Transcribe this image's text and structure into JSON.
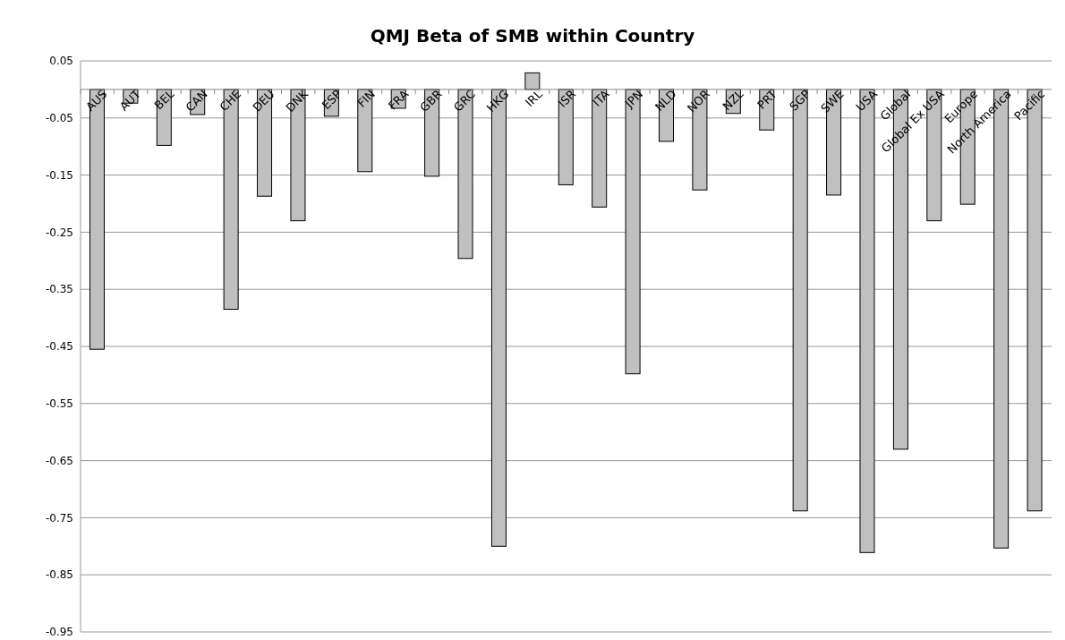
{
  "chart_data": {
    "type": "bar",
    "title": "QMJ Beta of SMB within Country",
    "categories": [
      "AUS",
      "AUT",
      "BEL",
      "CAN",
      "CHE",
      "DEU",
      "DNK",
      "ESP",
      "FIN",
      "FRA",
      "GBR",
      "GRC",
      "HKG",
      "IRL",
      "ISR",
      "ITA",
      "JPN",
      "NLD",
      "NOR",
      "NZL",
      "PRT",
      "SGP",
      "SWE",
      "USA",
      "Global",
      "Global Ex USA",
      "Europe",
      "North America",
      "Pacific"
    ],
    "values": [
      -0.455,
      -0.024,
      -0.098,
      -0.044,
      -0.385,
      -0.187,
      -0.23,
      -0.047,
      -0.144,
      -0.033,
      -0.152,
      -0.296,
      -0.8,
      0.029,
      -0.167,
      -0.206,
      -0.498,
      -0.091,
      -0.176,
      -0.042,
      -0.071,
      -0.738,
      -0.185,
      -0.811,
      -0.63,
      -0.23,
      -0.201,
      -0.803,
      -0.738
    ],
    "color": "#c0c0c0",
    "ylim": [
      -0.95,
      0.05
    ],
    "yticks": [
      0.05,
      -0.05,
      -0.15,
      -0.25,
      -0.35,
      -0.45,
      -0.55,
      -0.65,
      -0.75,
      -0.85,
      -0.95
    ],
    "grid": "y",
    "legend": false
  }
}
